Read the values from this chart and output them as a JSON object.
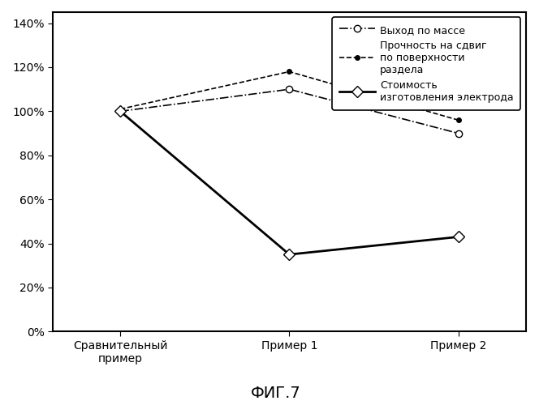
{
  "x_labels": [
    "Сравнительный\nпример",
    "Пример 1",
    "Пример 2"
  ],
  "x_positions": [
    0,
    1,
    2
  ],
  "series": [
    {
      "name": "Выход по массе",
      "values": [
        100,
        110,
        90
      ],
      "color": "#000000",
      "linestyle": "-.",
      "marker": "o",
      "marker_fill": "white",
      "linewidth": 1.2,
      "markersize": 6
    },
    {
      "name": "Прочность на сдвиг\nпо поверхности\nраздела",
      "values": [
        101,
        118,
        96
      ],
      "color": "#000000",
      "linestyle": "--",
      "marker": ".",
      "marker_fill": "black",
      "linewidth": 1.2,
      "markersize": 8
    },
    {
      "name": "Стоимость\nизготовления электрода",
      "values": [
        100,
        35,
        43
      ],
      "color": "#000000",
      "linestyle": "-",
      "marker": "D",
      "marker_fill": "white",
      "linewidth": 2.0,
      "markersize": 7
    }
  ],
  "ylim": [
    0,
    145
  ],
  "yticks": [
    0,
    20,
    40,
    60,
    80,
    100,
    120,
    140
  ],
  "title_bottom": "ФИГ.7",
  "title_fontsize": 14,
  "legend_fontsize": 9,
  "tick_fontsize": 10,
  "background_color": "#ffffff",
  "figsize": [
    6.8,
    5.0
  ],
  "dpi": 100
}
